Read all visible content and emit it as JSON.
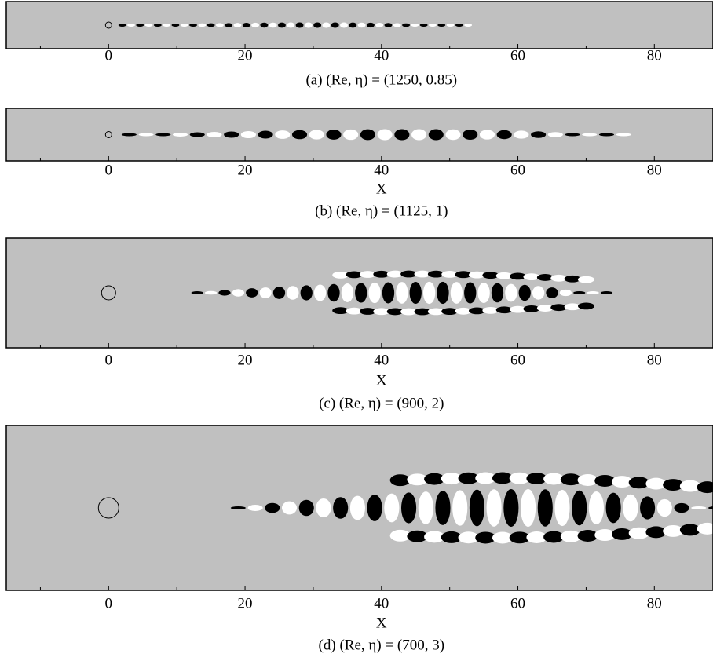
{
  "chart_data": [
    {
      "type": "field",
      "title": "(a) (Re, η) = (1250, 0.85)",
      "xlim": [
        -15,
        88.6
      ],
      "xticks": [
        0,
        20,
        40,
        60,
        80
      ],
      "minor_xticks": [
        -10,
        10,
        30,
        50,
        70
      ]
    },
    {
      "type": "field",
      "title": "(b) (Re, η) = (1125, 1)",
      "x_label": "X",
      "xlim": [
        -15,
        88.6
      ],
      "xticks": [
        0,
        20,
        40,
        60,
        80
      ],
      "minor_xticks": [
        -10,
        10,
        30,
        50,
        70
      ]
    },
    {
      "type": "field",
      "title": "(c) (Re, η) = (900, 2)",
      "x_label": "X",
      "xlim": [
        -15,
        88.6
      ],
      "xticks": [
        0,
        20,
        40,
        60,
        80
      ],
      "minor_xticks": [
        -10,
        10,
        30,
        50,
        70
      ]
    },
    {
      "type": "field",
      "title": "(d) (Re, η) = (700, 3)",
      "x_label": "X",
      "xlim": [
        -15,
        88.6
      ],
      "xticks": [
        0,
        20,
        40,
        60,
        80
      ],
      "minor_xticks": [
        -10,
        10,
        30,
        50,
        70
      ]
    }
  ]
}
